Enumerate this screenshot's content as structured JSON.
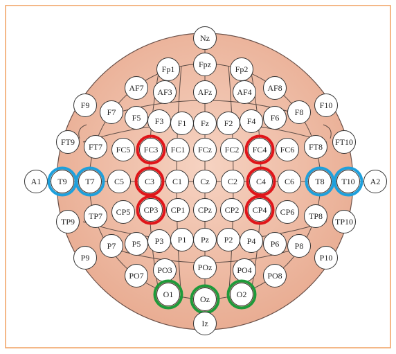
{
  "nodes": [
    {
      "label": "Nz"
    },
    {
      "label": "Fp1"
    },
    {
      "label": "Fpz"
    },
    {
      "label": "Fp2"
    },
    {
      "label": "AF7"
    },
    {
      "label": "AF3"
    },
    {
      "label": "AFz"
    },
    {
      "label": "AF4"
    },
    {
      "label": "AF8"
    },
    {
      "label": "F9"
    },
    {
      "label": "F7"
    },
    {
      "label": "F5"
    },
    {
      "label": "F3"
    },
    {
      "label": "F1"
    },
    {
      "label": "Fz"
    },
    {
      "label": "F2"
    },
    {
      "label": "F4"
    },
    {
      "label": "F6"
    },
    {
      "label": "F8"
    },
    {
      "label": "F10"
    },
    {
      "label": "FT9"
    },
    {
      "label": "FT7"
    },
    {
      "label": "FC5"
    },
    {
      "label": "FC3"
    },
    {
      "label": "FC1"
    },
    {
      "label": "FCz"
    },
    {
      "label": "FC2"
    },
    {
      "label": "FC4"
    },
    {
      "label": "FC6"
    },
    {
      "label": "FT8"
    },
    {
      "label": "FT10"
    },
    {
      "label": "A1"
    },
    {
      "label": "T9"
    },
    {
      "label": "T7"
    },
    {
      "label": "C5"
    },
    {
      "label": "C3"
    },
    {
      "label": "C1"
    },
    {
      "label": "Cz"
    },
    {
      "label": "C2"
    },
    {
      "label": "C4"
    },
    {
      "label": "C6"
    },
    {
      "label": "T8"
    },
    {
      "label": "T10"
    },
    {
      "label": "A2"
    },
    {
      "label": "TP9"
    },
    {
      "label": "TP7"
    },
    {
      "label": "CP5"
    },
    {
      "label": "CP3"
    },
    {
      "label": "CP1"
    },
    {
      "label": "CPz"
    },
    {
      "label": "CP2"
    },
    {
      "label": "CP4"
    },
    {
      "label": "CP6"
    },
    {
      "label": "TP8"
    },
    {
      "label": "TP10"
    },
    {
      "label": "P9"
    },
    {
      "label": "P7"
    },
    {
      "label": "P5"
    },
    {
      "label": "P3"
    },
    {
      "label": "P1"
    },
    {
      "label": "Pz"
    },
    {
      "label": "P2"
    },
    {
      "label": "P4"
    },
    {
      "label": "P6"
    },
    {
      "label": "P8"
    },
    {
      "label": "P10"
    },
    {
      "label": "PO7"
    },
    {
      "label": "PO3"
    },
    {
      "label": "POz"
    },
    {
      "label": "PO4"
    },
    {
      "label": "PO8"
    },
    {
      "label": "O1"
    },
    {
      "label": "Oz"
    },
    {
      "label": "O2"
    },
    {
      "label": "Iz"
    }
  ]
}
